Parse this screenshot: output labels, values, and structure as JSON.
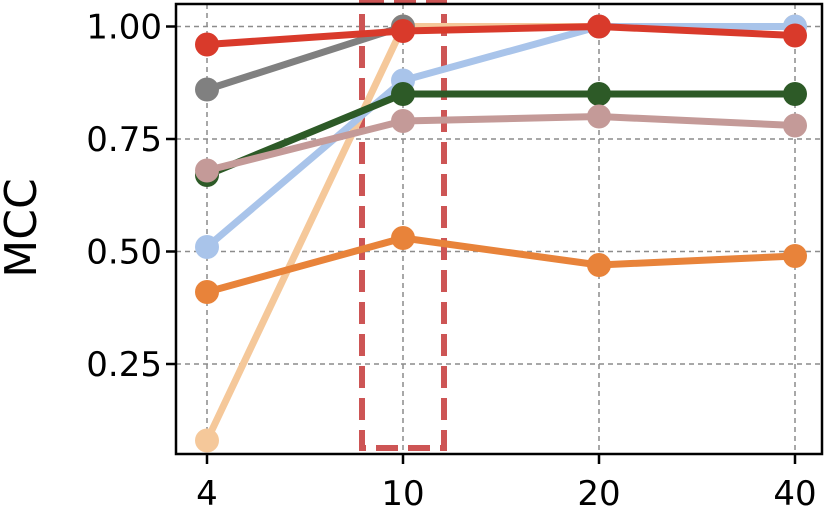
{
  "chart_data": {
    "type": "line",
    "title": "",
    "xlabel": "",
    "ylabel": "MCC",
    "x": [
      "4",
      "10",
      "20",
      "40"
    ],
    "ylim": [
      0.05,
      1.05
    ],
    "yticks": [
      "0.25",
      "0.50",
      "0.75",
      "1.00"
    ],
    "grid": true,
    "legend": "none",
    "highlight": {
      "category": "10",
      "style": "dashed-box",
      "color": "#cd5555"
    },
    "series": [
      {
        "color": "#f5c89a",
        "values": [
          0.08,
          1.0,
          1.0,
          1.0
        ]
      },
      {
        "color": "#e8833a",
        "values": [
          0.41,
          0.53,
          0.47,
          0.49
        ]
      },
      {
        "color": "#a9c4ea",
        "values": [
          0.51,
          0.88,
          1.0,
          1.0
        ]
      },
      {
        "color": "#2d5a27",
        "values": [
          0.67,
          0.85,
          0.85,
          0.85
        ]
      },
      {
        "color": "#c49a98",
        "values": [
          0.68,
          0.79,
          0.8,
          0.78
        ]
      },
      {
        "color": "#808080",
        "values": [
          0.86,
          1.0,
          null,
          null
        ]
      },
      {
        "color": "#d93a2b",
        "values": [
          0.96,
          0.99,
          1.0,
          0.98
        ]
      }
    ]
  }
}
